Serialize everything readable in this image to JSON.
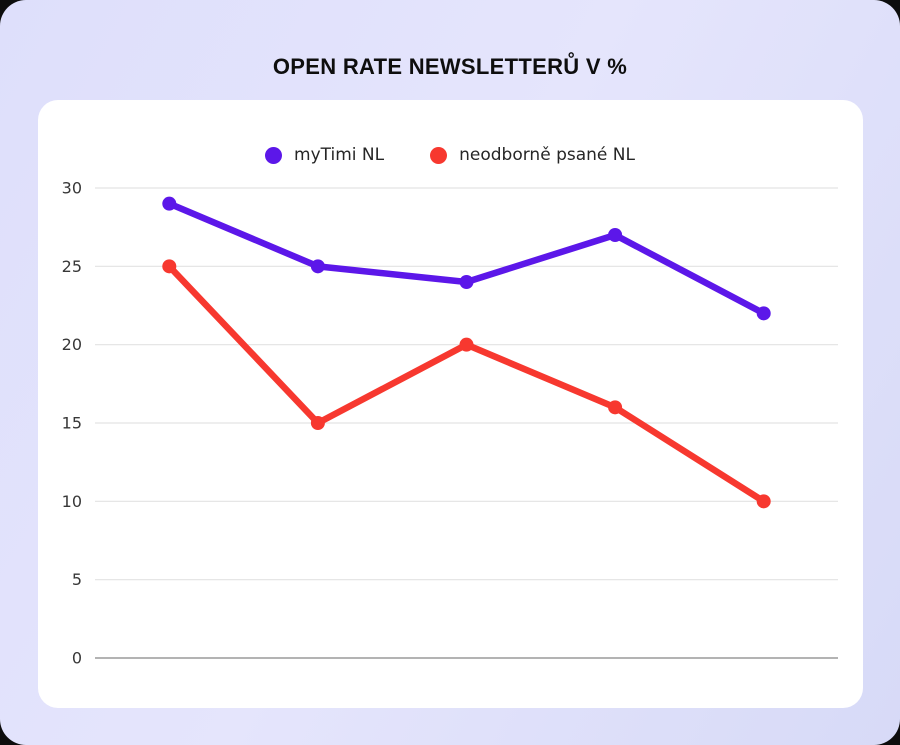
{
  "page": {
    "title": "OPEN RATE NEWSLETTERŮ V %"
  },
  "chart_data": {
    "type": "line",
    "title": "OPEN RATE NEWSLETTERŮ V %",
    "xlabel": "",
    "ylabel": "",
    "x_axis_labels_shown": false,
    "num_points": 5,
    "series": [
      {
        "name": "myTimi NL",
        "color": "#5c17e9",
        "values": [
          29,
          25,
          24,
          27,
          22
        ]
      },
      {
        "name": "neodborně psané NL",
        "color": "#f7382f",
        "values": [
          25,
          15,
          20,
          16,
          10
        ]
      }
    ],
    "yticks": [
      30,
      25,
      20,
      15,
      10,
      5,
      0
    ],
    "ylim": [
      0,
      30
    ],
    "grid": true,
    "legend_position": "top",
    "colors": {
      "page_background": "#dfe0fa",
      "card_background": "#ffffff",
      "gridline": "#e3e3e3",
      "axis_line": "#9a9a9a",
      "tick_text": "#383838",
      "title_text": "#0e0e0e"
    }
  }
}
